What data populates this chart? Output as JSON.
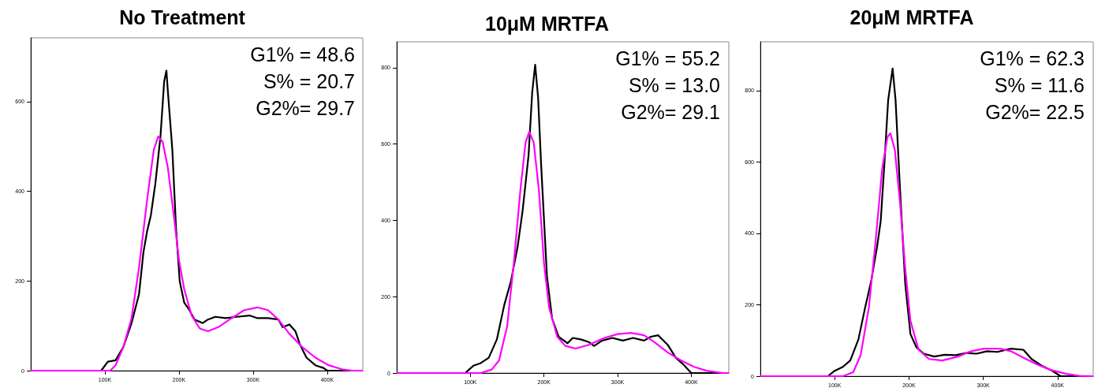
{
  "chart_data": [
    {
      "type": "line",
      "title": "No Treatment",
      "marker": "none",
      "annotations": [
        "G1% = 48.6",
        "S% = 20.7",
        "G2%= 29.7"
      ],
      "xlim": [
        0,
        448000
      ],
      "xticks": [
        {
          "value": 100000,
          "label": "100K"
        },
        {
          "value": 200000,
          "label": "200K"
        },
        {
          "value": 300000,
          "label": "300K"
        },
        {
          "value": 400000,
          "label": "400K"
        }
      ],
      "ylim": [
        0,
        742
      ],
      "yticks": [
        0,
        200,
        400,
        600
      ],
      "series": [
        {
          "color": "#000000",
          "x": [
            0,
            95000,
            104000,
            114500,
            125000,
            136000,
            146000,
            152000,
            157000,
            162000,
            168000,
            175000,
            180000,
            183000,
            185000,
            191000,
            196000,
            201000,
            207000,
            214000,
            221000,
            232000,
            239000,
            249000,
            263000,
            278000,
            295000,
            306000,
            320000,
            334000,
            340000,
            349000,
            357000,
            363000,
            372000,
            384000,
            395000,
            400000,
            448000
          ],
          "values": [
            0,
            0,
            20,
            23,
            53,
            106,
            170,
            264,
            311,
            346,
            416,
            522,
            645,
            669,
            622,
            493,
            317,
            199,
            152,
            135,
            114,
            106,
            114,
            120,
            117,
            120,
            123,
            117,
            117,
            114,
            97,
            103,
            88,
            59,
            29,
            12,
            6,
            0,
            0
          ]
        },
        {
          "color": "#ff00ff",
          "x": [
            0,
            107000,
            114500,
            125000,
            136000,
            146000,
            157000,
            166000,
            172000,
            178000,
            185000,
            193000,
            200000,
            207000,
            217000,
            228000,
            239000,
            253000,
            271000,
            288000,
            306000,
            320000,
            334000,
            349000,
            366000,
            384000,
            402000,
            420000,
            434000,
            448000
          ],
          "values": [
            0,
            0,
            12,
            53,
            117,
            229,
            381,
            493,
            522,
            510,
            452,
            346,
            246,
            182,
            123,
            94,
            88,
            97,
            117,
            135,
            141,
            135,
            114,
            82,
            53,
            29,
            12,
            3,
            0,
            0
          ]
        }
      ]
    },
    {
      "type": "line",
      "title": "10μM MRTFA",
      "marker": "none",
      "annotations": [
        "G1% = 55.2",
        "S% = 13.0",
        "G2%= 29.1"
      ],
      "xlim": [
        0,
        451000
      ],
      "xticks": [
        {
          "value": 100000,
          "label": "100K"
        },
        {
          "value": 200000,
          "label": "200K"
        },
        {
          "value": 300000,
          "label": "300K"
        },
        {
          "value": 400000,
          "label": "400K"
        }
      ],
      "ylim": [
        0,
        868
      ],
      "yticks": [
        0,
        200,
        400,
        600,
        800
      ],
      "series": [
        {
          "color": "#000000",
          "x": [
            0,
            93000,
            104000,
            114000,
            125000,
            136000,
            146000,
            155000,
            164000,
            171000,
            179000,
            184000,
            188000,
            192000,
            196000,
            204000,
            211000,
            220000,
            232000,
            239000,
            250000,
            261000,
            268000,
            279000,
            293000,
            307000,
            321000,
            336000,
            345000,
            355000,
            368000,
            379000,
            389000,
            400000,
            451000
          ],
          "values": [
            0,
            0,
            19,
            26,
            40,
            88,
            178,
            240,
            329,
            426,
            570,
            736,
            808,
            722,
            550,
            254,
            143,
            95,
            78,
            92,
            88,
            81,
            71,
            85,
            92,
            85,
            92,
            85,
            95,
            99,
            74,
            40,
            23,
            0,
            0
          ]
        },
        {
          "color": "#ff00ff",
          "x": [
            0,
            114000,
            129000,
            139000,
            150000,
            159000,
            168000,
            175000,
            180000,
            186000,
            193000,
            200000,
            207000,
            218000,
            229000,
            243000,
            261000,
            282000,
            300000,
            318000,
            336000,
            350000,
            368000,
            386000,
            404000,
            421000,
            443000,
            451000
          ],
          "values": [
            0,
            0,
            9,
            33,
            123,
            288,
            481,
            605,
            632,
            605,
            481,
            288,
            171,
            95,
            71,
            64,
            74,
            92,
            102,
            105,
            99,
            81,
            54,
            33,
            16,
            6,
            0,
            0
          ]
        }
      ]
    },
    {
      "type": "line",
      "title": "20μM MRTFA",
      "marker": "none",
      "annotations": [
        "G1% = 62.3",
        "S% = 11.6",
        "G2%= 22.5"
      ],
      "xlim": [
        0,
        448000
      ],
      "xticks": [
        {
          "value": 100000,
          "label": "100K"
        },
        {
          "value": 200000,
          "label": "200K"
        },
        {
          "value": 300000,
          "label": "300K"
        },
        {
          "value": 400000,
          "label": "400K"
        }
      ],
      "ylim": [
        0,
        937
      ],
      "yticks": [
        0,
        200,
        400,
        600,
        800
      ],
      "series": [
        {
          "color": "#000000",
          "x": [
            0,
            91000,
            100000,
            111000,
            121000,
            132000,
            141000,
            149000,
            157000,
            162000,
            167000,
            172000,
            178000,
            182000,
            188000,
            195000,
            202000,
            210000,
            220000,
            234000,
            248000,
            263000,
            277000,
            291000,
            305000,
            319000,
            337000,
            354000,
            365000,
            379000,
            393000,
            404000,
            448000
          ],
          "values": [
            0,
            0,
            15,
            26,
            44,
            103,
            192,
            265,
            361,
            435,
            597,
            773,
            862,
            773,
            523,
            258,
            118,
            81,
            63,
            55,
            60,
            59,
            65,
            63,
            70,
            68,
            77,
            74,
            48,
            29,
            15,
            0,
            0
          ]
        },
        {
          "color": "#ff00ff",
          "x": [
            0,
            111000,
            125000,
            135000,
            146000,
            155000,
            164000,
            171000,
            175000,
            181000,
            188000,
            195000,
            202000,
            213000,
            227000,
            245000,
            266000,
            284000,
            301000,
            323000,
            337000,
            354000,
            372000,
            390000,
            411000,
            429000,
            448000
          ],
          "values": [
            0,
            0,
            11,
            59,
            192,
            376,
            582,
            670,
            681,
            634,
            486,
            302,
            155,
            74,
            48,
            44,
            55,
            70,
            77,
            77,
            70,
            52,
            33,
            18,
            7,
            1,
            0
          ]
        }
      ]
    }
  ]
}
